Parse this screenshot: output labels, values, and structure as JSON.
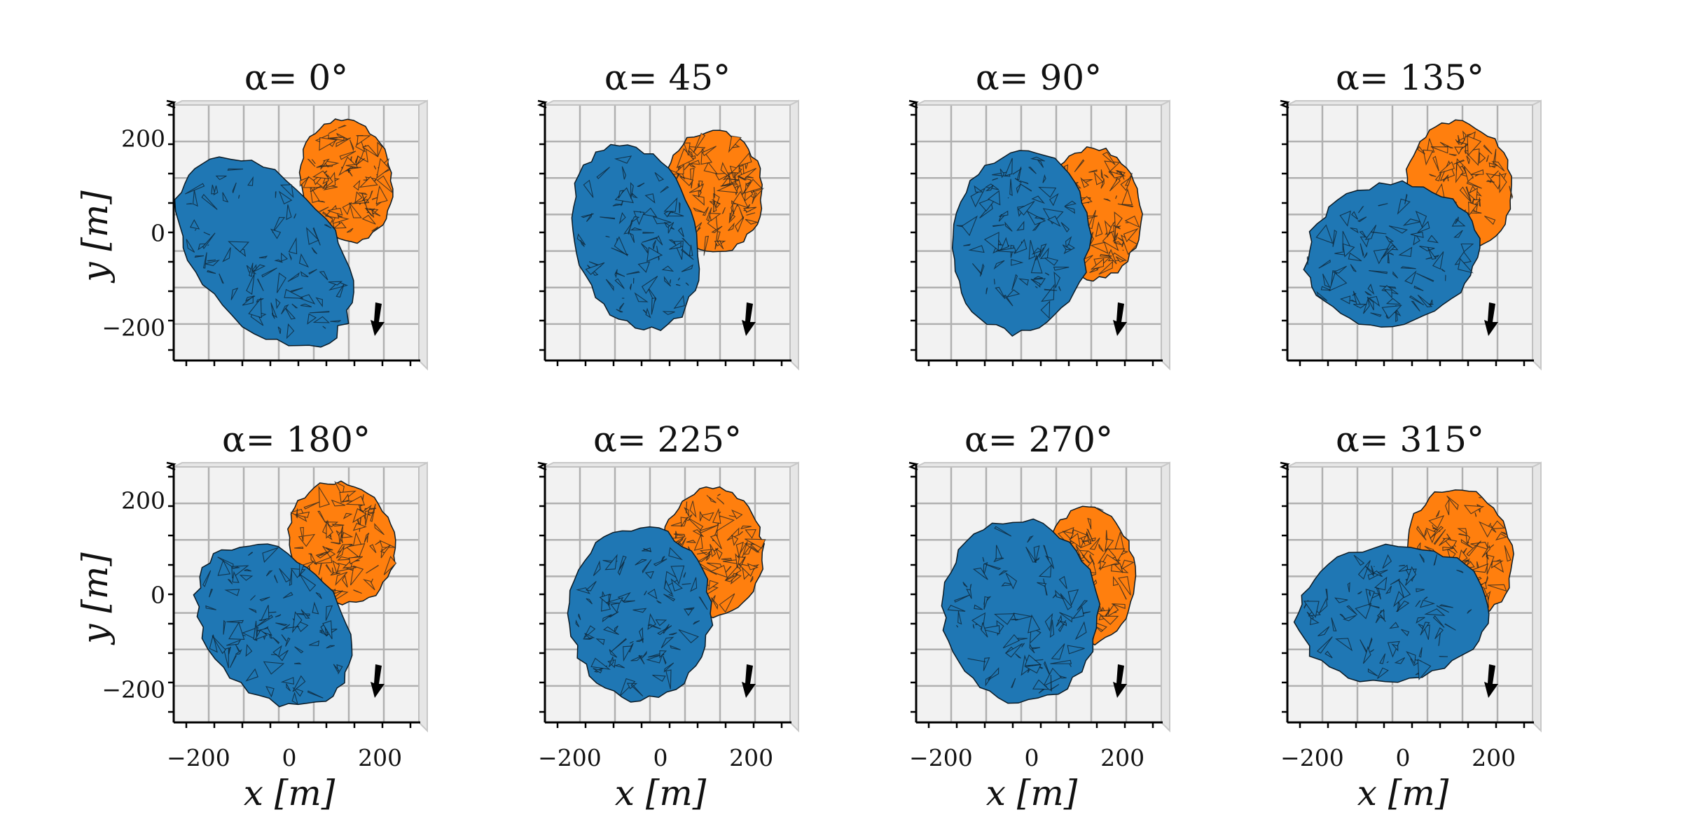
{
  "chart_data": {
    "type": "scatter",
    "layout": "2x4 grid of 3D views",
    "panels": [
      {
        "title": "α= 0°",
        "alpha_deg": 0,
        "blue": {
          "cx": -70,
          "cy": -40,
          "rx": 150,
          "ry": 240,
          "rot": 40
        },
        "orange": {
          "cx": 110,
          "cy": 110,
          "rx": 100,
          "ry": 135,
          "rot": 10
        }
      },
      {
        "title": "α= 45°",
        "alpha_deg": 45,
        "blue": {
          "cx": -70,
          "cy": -10,
          "rx": 135,
          "ry": 205,
          "rot": 15
        },
        "orange": {
          "cx": 100,
          "cy": 85,
          "rx": 110,
          "ry": 135,
          "rot": 0
        }
      },
      {
        "title": "α= 90°",
        "alpha_deg": 90,
        "blue": {
          "cx": -40,
          "cy": -20,
          "rx": 150,
          "ry": 200,
          "rot": -5
        },
        "orange": {
          "cx": 120,
          "cy": 40,
          "rx": 105,
          "ry": 145,
          "rot": 0
        }
      },
      {
        "title": "α= 135°",
        "alpha_deg": 135,
        "blue": {
          "cx": -40,
          "cy": -45,
          "rx": 190,
          "ry": 155,
          "rot": 10
        },
        "orange": {
          "cx": 110,
          "cy": 100,
          "rx": 115,
          "ry": 140,
          "rot": 10
        }
      },
      {
        "title": "α= 180°",
        "alpha_deg": 180,
        "blue": {
          "cx": -50,
          "cy": -65,
          "rx": 145,
          "ry": 200,
          "rot": 40
        },
        "orange": {
          "cx": 100,
          "cy": 110,
          "rx": 115,
          "ry": 135,
          "rot": 20
        }
      },
      {
        "title": "α= 225°",
        "alpha_deg": 225,
        "blue": {
          "cx": -60,
          "cy": -40,
          "rx": 155,
          "ry": 190,
          "rot": 0
        },
        "orange": {
          "cx": 100,
          "cy": 90,
          "rx": 110,
          "ry": 140,
          "rot": 0
        }
      },
      {
        "title": "α= 270°",
        "alpha_deg": 270,
        "blue": {
          "cx": -40,
          "cy": -35,
          "rx": 170,
          "ry": 200,
          "rot": 5
        },
        "orange": {
          "cx": 110,
          "cy": 40,
          "rx": 100,
          "ry": 150,
          "rot": 0
        }
      },
      {
        "title": "α= 315°",
        "alpha_deg": 315,
        "blue": {
          "cx": -40,
          "cy": -40,
          "rx": 210,
          "ry": 150,
          "rot": 5
        },
        "orange": {
          "cx": 110,
          "cy": 85,
          "rx": 115,
          "ry": 145,
          "rot": 10
        }
      }
    ],
    "series": [
      {
        "color": "#1f77b4",
        "part": "blue"
      },
      {
        "color": "#ff7f0e",
        "part": "orange"
      }
    ],
    "xlabel": "x [m]",
    "ylabel": "y [m]",
    "xticks": [
      -200,
      0,
      200
    ],
    "xtick_labels": [
      "−200",
      "0",
      "200"
    ],
    "yticks": [
      -200,
      0,
      200
    ],
    "ytick_labels": [
      "−200",
      "0",
      "200"
    ],
    "xlim": [
      -270,
      270
    ],
    "ylim": [
      -270,
      270
    ],
    "grid": true,
    "colors": {
      "blue": "#1f77b4",
      "orange": "#ff7f0e",
      "pane": "#f2f2f2",
      "grid": "#b0b0b0",
      "facet_edge": "#0b1a24"
    }
  }
}
